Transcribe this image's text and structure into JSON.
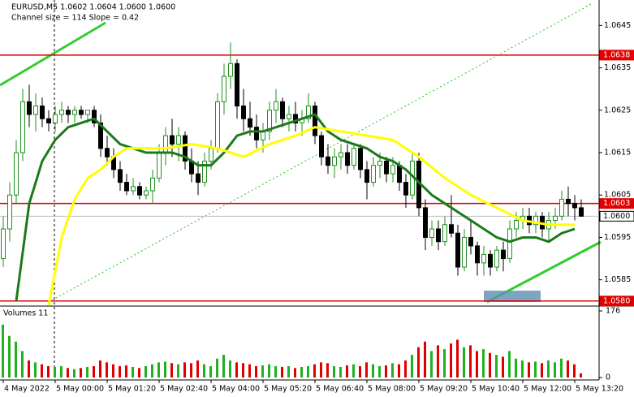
{
  "chart_data": {
    "type": "candlestick",
    "title": "EURUSD,M5  1.0602 1.0604 1.0600 1.0600",
    "subtitle": "Channel size = 114  Slope = 0.42",
    "up_color": "#1f8f1f",
    "down_color": "#000000",
    "categories": [
      "4 May 2022",
      null,
      null,
      null,
      null,
      null,
      null,
      null,
      "5 May 00:00",
      null,
      null,
      null,
      null,
      null,
      null,
      null,
      "5 May 01:20",
      null,
      null,
      null,
      null,
      null,
      null,
      null,
      "5 May 02:40",
      null,
      null,
      null,
      null,
      null,
      null,
      null,
      "5 May 04:00",
      null,
      null,
      null,
      null,
      null,
      null,
      null,
      "5 May 05:20",
      null,
      null,
      null,
      null,
      null,
      null,
      null,
      "5 May 06:40",
      null,
      null,
      null,
      null,
      null,
      null,
      null,
      "5 May 08:00",
      null,
      null,
      null,
      null,
      null,
      null,
      null,
      "5 May 09:20",
      null,
      null,
      null,
      null,
      null,
      null,
      null,
      "5 May 10:40",
      null,
      null,
      null,
      null,
      null,
      null,
      null,
      "5 May 12:00",
      null,
      null,
      null,
      null,
      null,
      null,
      null,
      "5 May 13:20",
      null
    ],
    "ohlc": [
      [
        1.059,
        1.06,
        1.0588,
        1.0597
      ],
      [
        1.0597,
        1.0608,
        1.0594,
        1.0605
      ],
      [
        1.0605,
        1.0618,
        1.0603,
        1.0615
      ],
      [
        1.0615,
        1.063,
        1.0613,
        1.0627
      ],
      [
        1.0627,
        1.0631,
        1.0621,
        1.0624
      ],
      [
        1.0624,
        1.0629,
        1.062,
        1.0626
      ],
      [
        1.0626,
        1.0628,
        1.0621,
        1.0623
      ],
      [
        1.0623,
        1.0625,
        1.062,
        1.0622
      ],
      [
        1.0622,
        1.0626,
        1.062,
        1.0624
      ],
      [
        1.0624,
        1.0627,
        1.0622,
        1.0625
      ],
      [
        1.0625,
        1.0626,
        1.0622,
        1.0624
      ],
      [
        1.0624,
        1.0626,
        1.0622,
        1.0625
      ],
      [
        1.0625,
        1.0626,
        1.0623,
        1.0624
      ],
      [
        1.0624,
        1.0625,
        1.0622,
        1.0625
      ],
      [
        1.0625,
        1.0626,
        1.0621,
        1.0622
      ],
      [
        1.0622,
        1.0624,
        1.0614,
        1.0616
      ],
      [
        1.0616,
        1.0619,
        1.0612,
        1.0614
      ],
      [
        1.0614,
        1.0616,
        1.0609,
        1.0611
      ],
      [
        1.0611,
        1.0613,
        1.0606,
        1.0608
      ],
      [
        1.0608,
        1.061,
        1.0605,
        1.0606
      ],
      [
        1.0606,
        1.0609,
        1.0605,
        1.0607
      ],
      [
        1.0607,
        1.0608,
        1.0604,
        1.0605
      ],
      [
        1.0605,
        1.0607,
        1.0604,
        1.0606
      ],
      [
        1.0606,
        1.0611,
        1.0603,
        1.0609
      ],
      [
        1.0609,
        1.0617,
        1.0608,
        1.0615
      ],
      [
        1.0615,
        1.0621,
        1.0612,
        1.0619
      ],
      [
        1.0619,
        1.0623,
        1.0614,
        1.0617
      ],
      [
        1.0617,
        1.0621,
        1.0613,
        1.0619
      ],
      [
        1.0619,
        1.062,
        1.0611,
        1.0613
      ],
      [
        1.0613,
        1.0616,
        1.0608,
        1.061
      ],
      [
        1.061,
        1.0613,
        1.0605,
        1.0608
      ],
      [
        1.0608,
        1.0615,
        1.0607,
        1.0613
      ],
      [
        1.0613,
        1.0618,
        1.0611,
        1.0616
      ],
      [
        1.0616,
        1.0629,
        1.0615,
        1.0627
      ],
      [
        1.0627,
        1.0636,
        1.0624,
        1.0633
      ],
      [
        1.0633,
        1.0641,
        1.063,
        1.0636
      ],
      [
        1.0636,
        1.0637,
        1.0623,
        1.0626
      ],
      [
        1.0626,
        1.063,
        1.062,
        1.0623
      ],
      [
        1.0623,
        1.0627,
        1.0619,
        1.0621
      ],
      [
        1.0621,
        1.0624,
        1.0616,
        1.0618
      ],
      [
        1.0618,
        1.0622,
        1.0615,
        1.062
      ],
      [
        1.062,
        1.0627,
        1.0618,
        1.0625
      ],
      [
        1.0625,
        1.063,
        1.0622,
        1.0627
      ],
      [
        1.0627,
        1.0628,
        1.0621,
        1.0623
      ],
      [
        1.0623,
        1.0626,
        1.062,
        1.0624
      ],
      [
        1.0624,
        1.0627,
        1.062,
        1.0622
      ],
      [
        1.0622,
        1.0625,
        1.0619,
        1.0623
      ],
      [
        1.0623,
        1.0629,
        1.0622,
        1.0626
      ],
      [
        1.0626,
        1.0627,
        1.0617,
        1.0619
      ],
      [
        1.0619,
        1.062,
        1.0612,
        1.0614
      ],
      [
        1.0614,
        1.0617,
        1.061,
        1.0612
      ],
      [
        1.0612,
        1.0616,
        1.0609,
        1.0614
      ],
      [
        1.0614,
        1.0617,
        1.0611,
        1.0615
      ],
      [
        1.0615,
        1.0617,
        1.061,
        1.0612
      ],
      [
        1.0612,
        1.0617,
        1.0611,
        1.0616
      ],
      [
        1.0616,
        1.0617,
        1.0609,
        1.0611
      ],
      [
        1.0611,
        1.0613,
        1.0604,
        1.0608
      ],
      [
        1.0608,
        1.0614,
        1.0607,
        1.0612
      ],
      [
        1.0612,
        1.0615,
        1.0609,
        1.0613
      ],
      [
        1.0613,
        1.0614,
        1.0608,
        1.061
      ],
      [
        1.061,
        1.0614,
        1.0608,
        1.0612
      ],
      [
        1.0612,
        1.0613,
        1.0606,
        1.0608
      ],
      [
        1.0608,
        1.061,
        1.0602,
        1.0605
      ],
      [
        1.0605,
        1.0615,
        1.0604,
        1.0613
      ],
      [
        1.0613,
        1.0615,
        1.06,
        1.0602
      ],
      [
        1.0602,
        1.0604,
        1.0592,
        1.0595
      ],
      [
        1.0595,
        1.0599,
        1.0593,
        1.0597
      ],
      [
        1.0597,
        1.0599,
        1.0592,
        1.0594
      ],
      [
        1.0594,
        1.06,
        1.0593,
        1.0598
      ],
      [
        1.0598,
        1.0605,
        1.0595,
        1.0596
      ],
      [
        1.0596,
        1.0598,
        1.0586,
        1.0588
      ],
      [
        1.0588,
        1.0597,
        1.0587,
        1.0595
      ],
      [
        1.0595,
        1.0599,
        1.0591,
        1.0593
      ],
      [
        1.0593,
        1.0594,
        1.0586,
        1.0589
      ],
      [
        1.0589,
        1.0593,
        1.0586,
        1.0591
      ],
      [
        1.0591,
        1.0592,
        1.0586,
        1.0588
      ],
      [
        1.0588,
        1.0593,
        1.0587,
        1.0592
      ],
      [
        1.0592,
        1.0594,
        1.0587,
        1.059
      ],
      [
        1.059,
        1.0599,
        1.0589,
        1.0597
      ],
      [
        1.0597,
        1.0601,
        1.0595,
        1.0599
      ],
      [
        1.0599,
        1.0602,
        1.0597,
        1.06
      ],
      [
        1.06,
        1.0602,
        1.0596,
        1.0598
      ],
      [
        1.0598,
        1.0601,
        1.0596,
        1.06
      ],
      [
        1.06,
        1.0601,
        1.0595,
        1.0597
      ],
      [
        1.0597,
        1.0601,
        1.0594,
        1.0599
      ],
      [
        1.0599,
        1.0602,
        1.0597,
        1.06
      ],
      [
        1.06,
        1.0606,
        1.0599,
        1.0604
      ],
      [
        1.0604,
        1.0607,
        1.06,
        1.0603
      ],
      [
        1.0603,
        1.0605,
        1.0599,
        1.0602
      ],
      [
        1.0602,
        1.0604,
        1.06,
        1.06
      ]
    ],
    "ylim": [
      1.0579,
      1.0651
    ],
    "yticks": [
      1.0645,
      1.0635,
      1.0625,
      1.0615,
      1.0605,
      1.0595,
      1.0585
    ],
    "levels": [
      {
        "value": 1.0638,
        "label": "1.0638",
        "color": "#e00000"
      },
      {
        "value": 1.0603,
        "label": "1.0603",
        "color": "#e00000"
      },
      {
        "value": 1.06,
        "label": "1.0600",
        "color": "#c0c0c0"
      },
      {
        "value": 1.058,
        "label": "1.0580",
        "color": "#e00000"
      }
    ],
    "lines": [
      {
        "color": "#1a7a1a",
        "x": [
          2,
          4,
          6,
          8,
          10,
          12,
          14,
          16,
          18,
          20,
          22,
          24,
          26,
          28,
          30,
          32,
          34,
          36,
          38,
          40,
          42,
          44,
          46,
          48,
          50,
          52,
          54,
          56,
          58,
          60,
          62,
          64,
          66,
          68,
          70,
          72,
          74,
          76,
          78,
          80,
          82,
          84,
          86,
          88
        ],
        "values": [
          1.058,
          1.0603,
          1.0613,
          1.0618,
          1.0621,
          1.0622,
          1.0623,
          1.062,
          1.0617,
          1.0616,
          1.0615,
          1.0615,
          1.0615,
          1.0614,
          1.0612,
          1.0612,
          1.0615,
          1.0619,
          1.062,
          1.062,
          1.0621,
          1.0622,
          1.0623,
          1.0624,
          1.062,
          1.0618,
          1.0617,
          1.0616,
          1.0614,
          1.0613,
          1.0611,
          1.0608,
          1.0605,
          1.0603,
          1.0601,
          1.0599,
          1.0597,
          1.0595,
          1.0594,
          1.0595,
          1.0595,
          1.0594,
          1.0596,
          1.0597
        ]
      },
      {
        "color": "#ffff00",
        "x": [
          7,
          9,
          11,
          13,
          15,
          17,
          19,
          21,
          25,
          29,
          33,
          37,
          41,
          45,
          48,
          52,
          56,
          60,
          64,
          68,
          72,
          76,
          80,
          84,
          88
        ],
        "values": [
          1.0579,
          1.0595,
          1.0604,
          1.0609,
          1.0611,
          1.0614,
          1.0616,
          1.0616,
          1.0616,
          1.0617,
          1.0616,
          1.0614,
          1.0617,
          1.0619,
          1.0621,
          1.062,
          1.0619,
          1.0618,
          1.0614,
          1.0609,
          1.0605,
          1.0602,
          1.0599,
          1.0598,
          1.0598
        ]
      }
    ],
    "volume_title": "Volumes 11",
    "volumes": [
      140,
      110,
      95,
      70,
      45,
      40,
      35,
      30,
      28,
      30,
      25,
      22,
      25,
      28,
      30,
      45,
      40,
      35,
      30,
      32,
      28,
      25,
      30,
      35,
      40,
      42,
      38,
      35,
      40,
      38,
      45,
      35,
      30,
      50,
      60,
      45,
      40,
      38,
      35,
      30,
      32,
      35,
      30,
      28,
      30,
      25,
      28,
      30,
      35,
      40,
      38,
      30,
      28,
      32,
      35,
      30,
      40,
      35,
      30,
      32,
      38,
      35,
      45,
      60,
      80,
      95,
      70,
      85,
      75,
      90,
      100,
      80,
      85,
      70,
      75,
      65,
      60,
      55,
      70,
      50,
      45,
      40,
      42,
      38,
      45,
      40,
      50,
      45,
      35,
      11
    ],
    "volume_ylim": [
      0,
      176
    ],
    "volume_yticks": [
      176,
      0
    ]
  }
}
